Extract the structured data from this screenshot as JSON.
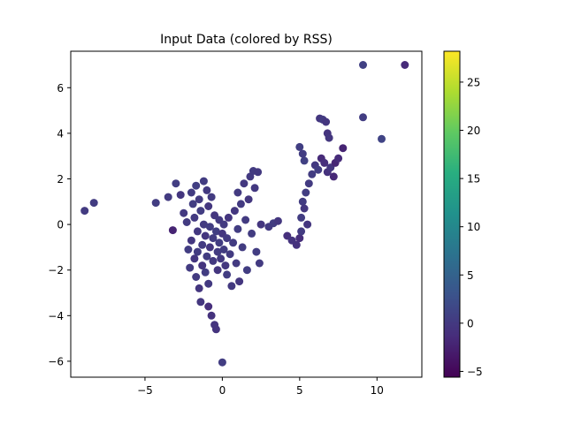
{
  "chart_data": {
    "type": "scatter",
    "title": "Input Data (colored by RSS)",
    "xlabel": "",
    "ylabel": "",
    "xlim": [
      -9.8,
      12.9
    ],
    "ylim": [
      -6.7,
      7.6
    ],
    "xticks": [
      -5,
      0,
      5,
      10
    ],
    "yticks": [
      -6,
      -4,
      -2,
      0,
      2,
      4,
      6
    ],
    "grid": false,
    "colorbar": {
      "label": "",
      "range": [
        -5.6,
        28.2
      ],
      "ticks": [
        -5,
        0,
        5,
        10,
        15,
        20,
        25
      ],
      "colormap": "viridis"
    },
    "color_value_name": "RSS",
    "points": [
      [
        -8.9,
        0.6,
        0.2
      ],
      [
        -8.3,
        0.95,
        0.3
      ],
      [
        -4.3,
        0.95,
        0.4
      ],
      [
        -3.5,
        1.2,
        0.2
      ],
      [
        -3.2,
        -0.25,
        -2.2
      ],
      [
        -3.0,
        1.8,
        0.4
      ],
      [
        -2.7,
        1.3,
        -0.3
      ],
      [
        -2.5,
        0.5,
        0.1
      ],
      [
        -2.3,
        0.1,
        0.2
      ],
      [
        -2.2,
        -1.1,
        0.4
      ],
      [
        -2.1,
        -1.9,
        0.2
      ],
      [
        -2.0,
        1.4,
        0.3
      ],
      [
        -2.0,
        -0.7,
        -0.2
      ],
      [
        -1.9,
        0.9,
        0.5
      ],
      [
        -1.8,
        -1.5,
        -0.4
      ],
      [
        -1.8,
        0.3,
        0.1
      ],
      [
        -1.7,
        -2.3,
        0.2
      ],
      [
        -1.7,
        1.7,
        0.6
      ],
      [
        -1.6,
        -0.3,
        -0.1
      ],
      [
        -1.6,
        -1.2,
        0.3
      ],
      [
        -1.5,
        -2.8,
        -0.3
      ],
      [
        -1.5,
        1.1,
        0.2
      ],
      [
        -1.4,
        -3.4,
        -0.2
      ],
      [
        -1.4,
        0.6,
        0.4
      ],
      [
        -1.3,
        -0.9,
        0.1
      ],
      [
        -1.3,
        -1.8,
        -0.5
      ],
      [
        -1.2,
        1.9,
        0.3
      ],
      [
        -1.2,
        0.0,
        0.2
      ],
      [
        -1.1,
        -0.5,
        -0.3
      ],
      [
        -1.1,
        -2.1,
        0.4
      ],
      [
        -1.0,
        1.5,
        0.1
      ],
      [
        -1.0,
        -1.4,
        0.3
      ],
      [
        -0.9,
        0.8,
        -0.2
      ],
      [
        -0.9,
        -2.6,
        0.1
      ],
      [
        -0.9,
        -3.6,
        -1.2
      ],
      [
        -0.8,
        -0.1,
        0.5
      ],
      [
        -0.8,
        -1.0,
        -0.4
      ],
      [
        -0.7,
        1.2,
        0.2
      ],
      [
        -0.7,
        -4.0,
        -0.8
      ],
      [
        -0.6,
        -0.6,
        0.3
      ],
      [
        -0.6,
        -1.6,
        0.0
      ],
      [
        -0.5,
        -4.4,
        -0.5
      ],
      [
        -0.5,
        0.4,
        -0.2
      ],
      [
        -0.4,
        -4.6,
        -0.6
      ],
      [
        -0.4,
        -0.3,
        0.6
      ],
      [
        -0.3,
        -1.2,
        0.2
      ],
      [
        -0.3,
        -2.0,
        -0.3
      ],
      [
        -0.2,
        0.2,
        0.1
      ],
      [
        -0.2,
        -0.8,
        0.4
      ],
      [
        -0.1,
        -1.5,
        -0.1
      ],
      [
        0.0,
        -6.05,
        0.5
      ],
      [
        0.0,
        -0.4,
        -0.3
      ],
      [
        0.1,
        0.0,
        0.2
      ],
      [
        0.1,
        -1.1,
        0.3
      ],
      [
        0.2,
        -1.8,
        -0.2
      ],
      [
        0.3,
        -0.6,
        0.1
      ],
      [
        0.3,
        -2.2,
        0.4
      ],
      [
        0.4,
        0.3,
        -0.4
      ],
      [
        0.5,
        -1.3,
        0.2
      ],
      [
        0.6,
        -2.7,
        0.0
      ],
      [
        0.7,
        -0.8,
        0.3
      ],
      [
        0.8,
        0.6,
        -0.2
      ],
      [
        0.9,
        -1.7,
        0.1
      ],
      [
        1.0,
        -0.2,
        0.4
      ],
      [
        1.0,
        1.4,
        0.2
      ],
      [
        1.1,
        -2.5,
        -0.3
      ],
      [
        1.2,
        0.9,
        0.1
      ],
      [
        1.3,
        -1.0,
        0.3
      ],
      [
        1.4,
        1.8,
        -0.1
      ],
      [
        1.5,
        0.2,
        0.2
      ],
      [
        1.6,
        -2.0,
        0.4
      ],
      [
        1.7,
        1.1,
        -0.2
      ],
      [
        1.8,
        2.1,
        0.1
      ],
      [
        1.9,
        -0.4,
        0.3
      ],
      [
        2.0,
        2.35,
        0.2
      ],
      [
        2.1,
        1.6,
        -0.1
      ],
      [
        2.2,
        -1.2,
        0.4
      ],
      [
        2.3,
        2.3,
        0.0
      ],
      [
        2.4,
        -1.7,
        0.2
      ],
      [
        2.5,
        0.0,
        -0.3
      ],
      [
        3.0,
        -0.1,
        0.1
      ],
      [
        3.3,
        0.05,
        0.3
      ],
      [
        3.6,
        0.15,
        -0.2
      ],
      [
        4.2,
        -0.5,
        -1.0
      ],
      [
        4.5,
        -0.7,
        -0.6
      ],
      [
        4.8,
        -0.9,
        -0.8
      ],
      [
        5.0,
        -0.6,
        -1.3
      ],
      [
        5.1,
        -0.3,
        0.2
      ],
      [
        5.1,
        0.3,
        0.4
      ],
      [
        5.2,
        1.0,
        0.3
      ],
      [
        5.3,
        0.7,
        -0.2
      ],
      [
        5.3,
        2.8,
        0.8
      ],
      [
        5.4,
        1.4,
        0.5
      ],
      [
        5.5,
        0.0,
        -0.4
      ],
      [
        5.6,
        1.8,
        0.2
      ],
      [
        5.0,
        3.4,
        0.6
      ],
      [
        5.2,
        3.1,
        0.4
      ],
      [
        5.8,
        2.2,
        0.3
      ],
      [
        6.0,
        2.6,
        -0.1
      ],
      [
        6.2,
        2.4,
        0.4
      ],
      [
        6.4,
        2.9,
        -1.6
      ],
      [
        6.6,
        2.7,
        -1.2
      ],
      [
        6.8,
        2.3,
        -0.8
      ],
      [
        7.0,
        2.5,
        -0.4
      ],
      [
        7.2,
        2.1,
        -1.8
      ],
      [
        7.3,
        2.7,
        -2.0
      ],
      [
        7.5,
        2.9,
        -1.5
      ],
      [
        7.8,
        3.35,
        -2.2
      ],
      [
        6.3,
        4.65,
        -0.3
      ],
      [
        6.5,
        4.6,
        0.2
      ],
      [
        6.7,
        4.5,
        -0.4
      ],
      [
        6.8,
        4.0,
        -0.6
      ],
      [
        6.9,
        3.8,
        -0.2
      ],
      [
        9.1,
        4.7,
        0.5
      ],
      [
        9.1,
        7.0,
        0.8
      ],
      [
        10.3,
        3.75,
        1.2
      ],
      [
        11.8,
        7.0,
        -1.6
      ]
    ]
  }
}
